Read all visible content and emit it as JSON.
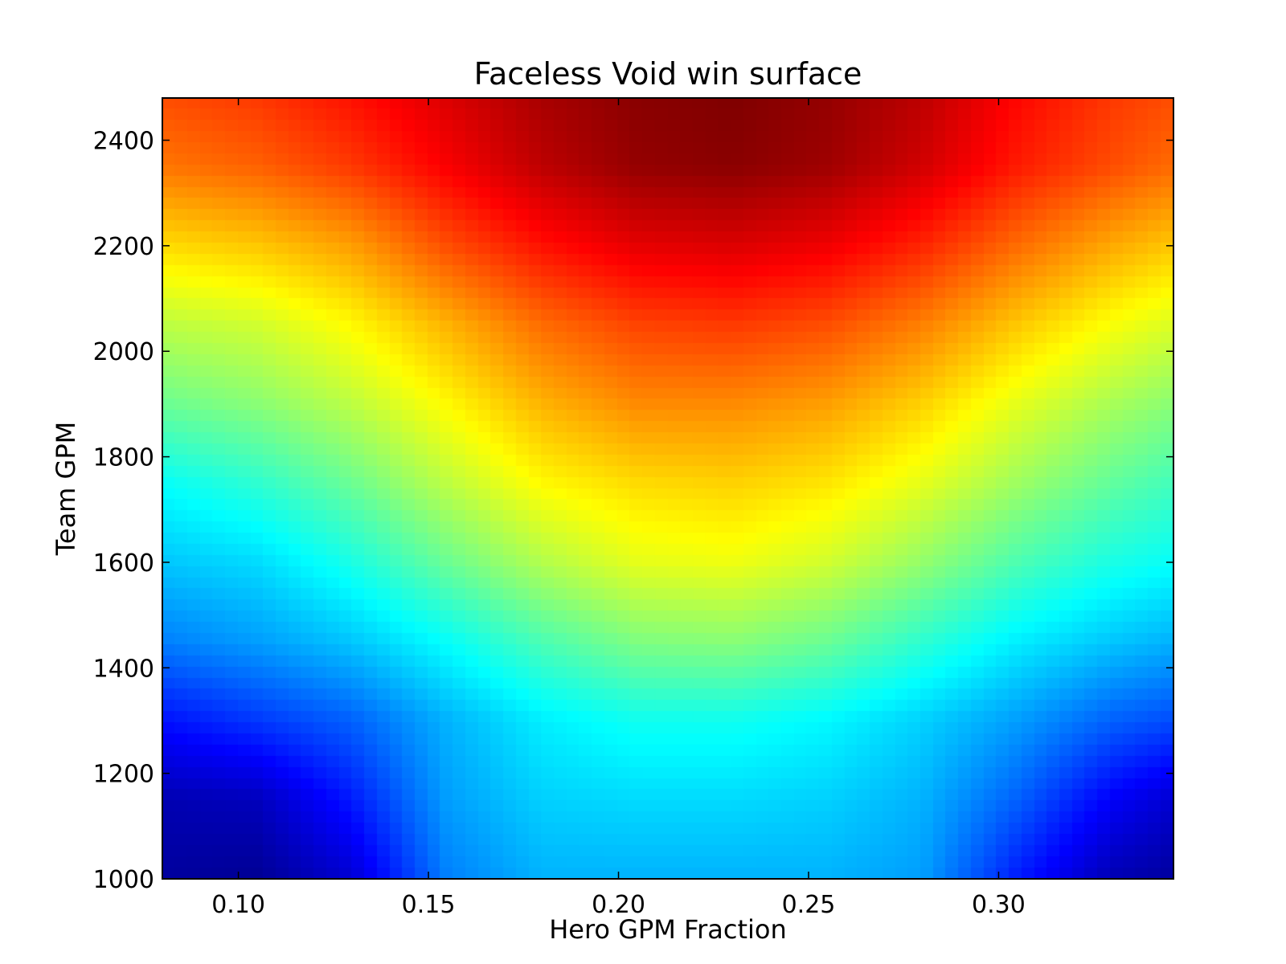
{
  "chart_data": {
    "type": "heatmap",
    "title": "Faceless Void win surface",
    "xlabel": "Hero GPM Fraction",
    "ylabel": "Team GPM",
    "xlim": [
      0.08,
      0.346
    ],
    "ylim": [
      1000,
      2480
    ],
    "x_ticks": [
      "0.10",
      "0.15",
      "0.20",
      "0.25",
      "0.30"
    ],
    "y_ticks": [
      "1000",
      "1200",
      "1400",
      "1600",
      "1800",
      "2000",
      "2200",
      "2400"
    ],
    "colormap": "jet",
    "grid": false,
    "x": [
      0.08,
      0.105,
      0.13,
      0.155,
      0.18,
      0.205,
      0.23,
      0.255,
      0.28,
      0.305,
      0.33,
      0.346
    ],
    "y": [
      1000,
      1150,
      1300,
      1450,
      1600,
      1750,
      1900,
      2050,
      2200,
      2350,
      2480
    ],
    "z": [
      [
        0.03,
        0.02,
        0.08,
        0.25,
        0.3,
        0.3,
        0.3,
        0.3,
        0.28,
        0.15,
        0.05,
        0.03
      ],
      [
        0.05,
        0.06,
        0.15,
        0.28,
        0.33,
        0.34,
        0.34,
        0.33,
        0.3,
        0.22,
        0.12,
        0.08
      ],
      [
        0.14,
        0.18,
        0.22,
        0.3,
        0.36,
        0.39,
        0.39,
        0.37,
        0.33,
        0.28,
        0.22,
        0.2
      ],
      [
        0.25,
        0.28,
        0.32,
        0.38,
        0.45,
        0.5,
        0.51,
        0.48,
        0.42,
        0.36,
        0.32,
        0.3
      ],
      [
        0.32,
        0.34,
        0.4,
        0.48,
        0.55,
        0.6,
        0.61,
        0.58,
        0.52,
        0.45,
        0.4,
        0.38
      ],
      [
        0.38,
        0.42,
        0.48,
        0.56,
        0.63,
        0.66,
        0.67,
        0.65,
        0.6,
        0.53,
        0.47,
        0.44
      ],
      [
        0.48,
        0.51,
        0.56,
        0.63,
        0.7,
        0.74,
        0.74,
        0.72,
        0.67,
        0.6,
        0.54,
        0.51
      ],
      [
        0.56,
        0.58,
        0.63,
        0.7,
        0.77,
        0.81,
        0.82,
        0.8,
        0.75,
        0.68,
        0.62,
        0.59
      ],
      [
        0.66,
        0.68,
        0.72,
        0.8,
        0.86,
        0.9,
        0.91,
        0.89,
        0.84,
        0.77,
        0.71,
        0.68
      ],
      [
        0.76,
        0.78,
        0.82,
        0.88,
        0.94,
        0.98,
        0.99,
        0.97,
        0.92,
        0.85,
        0.8,
        0.77
      ],
      [
        0.8,
        0.82,
        0.86,
        0.91,
        0.96,
        0.99,
        1.0,
        0.98,
        0.94,
        0.87,
        0.82,
        0.8
      ]
    ]
  }
}
